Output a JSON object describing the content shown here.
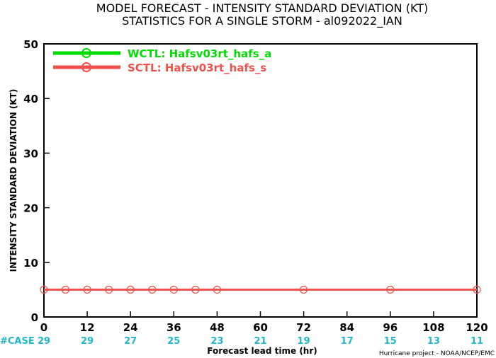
{
  "chart_data": {
    "type": "line",
    "title": "MODEL FORECAST - INTENSITY STANDARD DEVIATION (KT)",
    "subtitle": "STATISTICS FOR A SINGLE STORM - al092022_IAN",
    "xlabel": "Forecast lead time (hr)",
    "ylabel": "INTENSITY STANDARD DEVIATION (KT)",
    "xlim": [
      0,
      120
    ],
    "ylim": [
      0,
      50
    ],
    "x_ticks": [
      0,
      12,
      24,
      36,
      48,
      60,
      72,
      84,
      96,
      108,
      120
    ],
    "y_ticks": [
      0,
      10,
      20,
      30,
      40,
      50
    ],
    "legend_position": "top-left",
    "series": [
      {
        "name": "WCTL: Hafsv03rt_hafs_a",
        "color": "#00dc00",
        "x": [],
        "y": []
      },
      {
        "name": "SCTL: Hafsv03rt_hafs_s",
        "color": "#f0504a",
        "x": [
          0,
          6,
          12,
          18,
          24,
          30,
          36,
          42,
          48,
          72,
          96,
          120
        ],
        "y": [
          5,
          5,
          5,
          5,
          5,
          5,
          5,
          5,
          5,
          5,
          5,
          5
        ]
      }
    ],
    "case_label": "#CASE",
    "cases": {
      "x": [
        0,
        12,
        24,
        36,
        48,
        60,
        72,
        84,
        96,
        108,
        120
      ],
      "counts": [
        "29",
        "29",
        "27",
        "25",
        "23",
        "21",
        "19",
        "17",
        "15",
        "13",
        "11"
      ]
    },
    "credit": "Hurricane project - NOAA/NCEP/EMC"
  }
}
